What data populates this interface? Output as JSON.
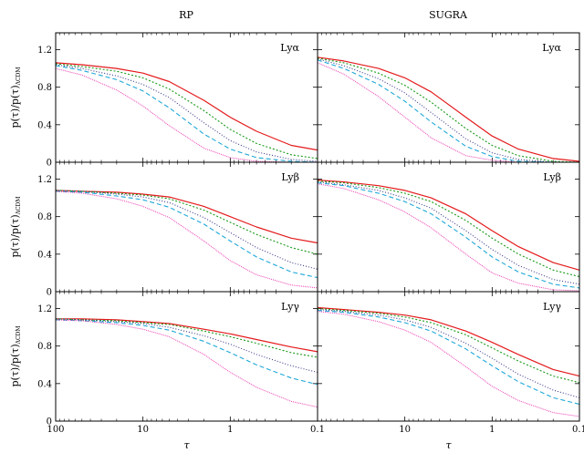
{
  "columns": [
    "RP",
    "SUGRA"
  ],
  "chart_data": {
    "type": "line",
    "x_scale": "log",
    "x_reversed": true,
    "xlabel": "τ",
    "ylabel": "p(τ)/p(τ)ΛCDM",
    "ylabel_main": "p(τ)/p(τ)",
    "ylabel_sub": "ΛCDM",
    "xlim": [
      100,
      0.1
    ],
    "ylim": [
      0,
      1.38
    ],
    "xticks": [
      {
        "value": 100,
        "label": "100"
      },
      {
        "value": 10,
        "label": "10"
      },
      {
        "value": 1,
        "label": "1"
      },
      {
        "value": 0.1,
        "label": "0.1"
      }
    ],
    "yticks": [
      {
        "value": 0,
        "label": "0"
      },
      {
        "value": 0.4,
        "label": "0.4"
      },
      {
        "value": 0.8,
        "label": "0.8"
      },
      {
        "value": 1.2,
        "label": "1.2"
      }
    ],
    "series_styles": [
      {
        "color": "#e41a1c",
        "dash": "",
        "width": 1.2
      },
      {
        "color": "#1a9a1a",
        "dash": "2,2",
        "width": 1.1
      },
      {
        "color": "#3c3c8c",
        "dash": "1,2",
        "width": 1.1
      },
      {
        "color": "#1fa8d8",
        "dash": "5,3",
        "width": 1.1
      },
      {
        "color": "#ee3fb3",
        "dash": "1,1",
        "width": 1.0
      }
    ],
    "x": [
      100,
      50,
      20,
      10,
      5,
      2,
      1,
      0.5,
      0.2,
      0.1
    ],
    "panels": [
      {
        "row": 0,
        "col": 0,
        "label": "Lyα",
        "series": [
          {
            "values": [
              1.06,
              1.04,
              1.0,
              0.95,
              0.86,
              0.66,
              0.48,
              0.33,
              0.18,
              0.13
            ]
          },
          {
            "values": [
              1.05,
              1.02,
              0.97,
              0.9,
              0.78,
              0.55,
              0.35,
              0.2,
              0.08,
              0.04
            ]
          },
          {
            "values": [
              1.04,
              1.0,
              0.92,
              0.83,
              0.69,
              0.42,
              0.23,
              0.11,
              0.03,
              0.01
            ]
          },
          {
            "values": [
              1.03,
              0.98,
              0.88,
              0.76,
              0.58,
              0.3,
              0.14,
              0.05,
              0.01,
              0.0
            ]
          },
          {
            "values": [
              1.0,
              0.93,
              0.77,
              0.6,
              0.39,
              0.15,
              0.05,
              0.01,
              0.0,
              0.0
            ]
          }
        ]
      },
      {
        "row": 0,
        "col": 1,
        "label": "Lyα",
        "series": [
          {
            "values": [
              1.12,
              1.08,
              1.0,
              0.9,
              0.75,
              0.48,
              0.28,
              0.14,
              0.04,
              0.01
            ]
          },
          {
            "values": [
              1.11,
              1.06,
              0.95,
              0.82,
              0.64,
              0.36,
              0.18,
              0.07,
              0.01,
              0.0
            ]
          },
          {
            "values": [
              1.1,
              1.03,
              0.89,
              0.74,
              0.53,
              0.25,
              0.1,
              0.03,
              0.0,
              0.0
            ]
          },
          {
            "values": [
              1.09,
              1.0,
              0.83,
              0.65,
              0.43,
              0.17,
              0.06,
              0.01,
              0.0,
              0.0
            ]
          },
          {
            "values": [
              1.06,
              0.94,
              0.7,
              0.48,
              0.26,
              0.07,
              0.02,
              0.0,
              0.0,
              0.0
            ]
          }
        ]
      },
      {
        "row": 1,
        "col": 0,
        "label": "Lyβ",
        "series": [
          {
            "values": [
              1.08,
              1.07,
              1.06,
              1.04,
              1.01,
              0.91,
              0.8,
              0.69,
              0.57,
              0.52
            ]
          },
          {
            "values": [
              1.08,
              1.07,
              1.05,
              1.03,
              0.99,
              0.87,
              0.74,
              0.61,
              0.47,
              0.4
            ]
          },
          {
            "values": [
              1.08,
              1.07,
              1.04,
              1.01,
              0.95,
              0.79,
              0.63,
              0.47,
              0.31,
              0.24
            ]
          },
          {
            "values": [
              1.07,
              1.06,
              1.02,
              0.98,
              0.9,
              0.72,
              0.54,
              0.37,
              0.21,
              0.15
            ]
          },
          {
            "values": [
              1.07,
              1.05,
              0.99,
              0.91,
              0.79,
              0.54,
              0.33,
              0.18,
              0.07,
              0.04
            ]
          }
        ]
      },
      {
        "row": 1,
        "col": 1,
        "label": "Lyβ",
        "series": [
          {
            "values": [
              1.19,
              1.17,
              1.13,
              1.08,
              1.0,
              0.83,
              0.65,
              0.48,
              0.31,
              0.23
            ]
          },
          {
            "values": [
              1.18,
              1.16,
              1.11,
              1.05,
              0.96,
              0.76,
              0.57,
              0.4,
              0.23,
              0.16
            ]
          },
          {
            "values": [
              1.17,
              1.14,
              1.08,
              1.0,
              0.89,
              0.65,
              0.45,
              0.28,
              0.13,
              0.08
            ]
          },
          {
            "values": [
              1.16,
              1.13,
              1.05,
              0.96,
              0.83,
              0.58,
              0.37,
              0.21,
              0.08,
              0.04
            ]
          },
          {
            "values": [
              1.15,
              1.1,
              0.98,
              0.85,
              0.68,
              0.4,
              0.2,
              0.09,
              0.02,
              0.01
            ]
          }
        ]
      },
      {
        "row": 2,
        "col": 0,
        "label": "Lyγ",
        "series": [
          {
            "values": [
              1.09,
              1.09,
              1.08,
              1.06,
              1.04,
              0.98,
              0.93,
              0.87,
              0.79,
              0.74
            ]
          },
          {
            "values": [
              1.09,
              1.08,
              1.07,
              1.05,
              1.03,
              0.96,
              0.9,
              0.83,
              0.73,
              0.68
            ]
          },
          {
            "values": [
              1.09,
              1.08,
              1.06,
              1.04,
              1.0,
              0.91,
              0.82,
              0.71,
              0.59,
              0.52
            ]
          },
          {
            "values": [
              1.08,
              1.07,
              1.05,
              1.02,
              0.97,
              0.85,
              0.73,
              0.6,
              0.46,
              0.39
            ]
          },
          {
            "values": [
              1.08,
              1.07,
              1.03,
              0.98,
              0.9,
              0.71,
              0.52,
              0.36,
              0.21,
              0.15
            ]
          }
        ]
      },
      {
        "row": 2,
        "col": 1,
        "label": "Lyγ",
        "series": [
          {
            "values": [
              1.21,
              1.19,
              1.16,
              1.13,
              1.08,
              0.96,
              0.84,
              0.71,
              0.55,
              0.48
            ]
          },
          {
            "values": [
              1.2,
              1.18,
              1.15,
              1.11,
              1.05,
              0.92,
              0.78,
              0.64,
              0.48,
              0.41
            ]
          },
          {
            "values": [
              1.19,
              1.17,
              1.13,
              1.08,
              1.0,
              0.83,
              0.67,
              0.5,
              0.33,
              0.25
            ]
          },
          {
            "values": [
              1.18,
              1.16,
              1.11,
              1.05,
              0.96,
              0.77,
              0.59,
              0.42,
              0.25,
              0.18
            ]
          },
          {
            "values": [
              1.17,
              1.14,
              1.06,
              0.97,
              0.84,
              0.58,
              0.37,
              0.22,
              0.09,
              0.05
            ]
          }
        ]
      }
    ]
  }
}
